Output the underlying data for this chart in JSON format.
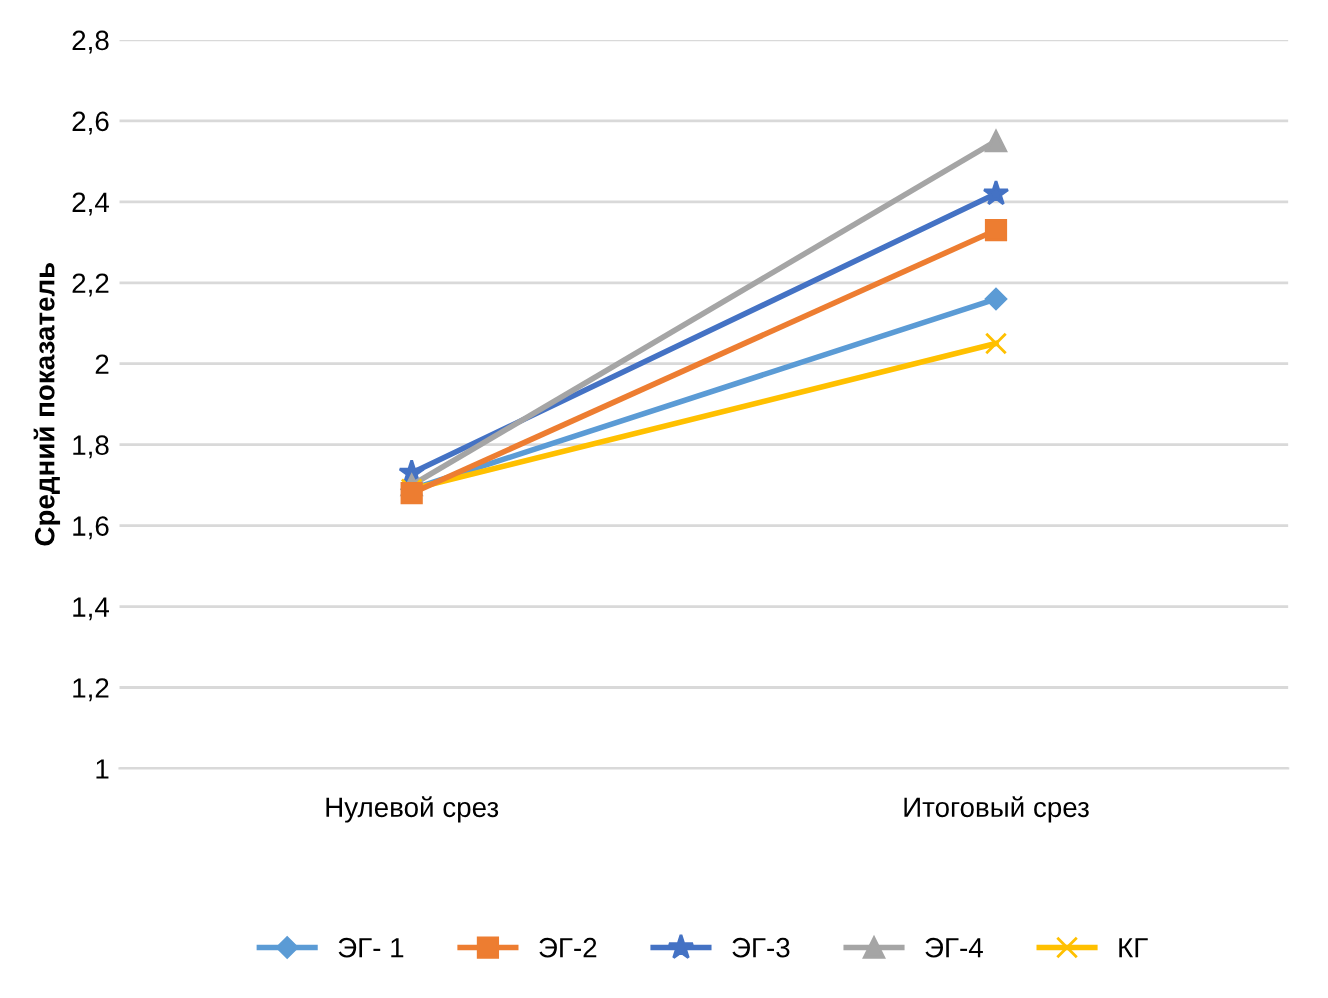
{
  "chart_data": {
    "type": "line",
    "ylabel": "Средний показатель",
    "categories": [
      "Нулевой срез",
      "Итоговый срез"
    ],
    "series": [
      {
        "name": "ЭГ- 1",
        "color": "#5b9bd5",
        "marker": "diamond",
        "values": [
          1.69,
          2.16
        ]
      },
      {
        "name": "ЭГ-2",
        "color": "#ed7d31",
        "marker": "square",
        "values": [
          1.68,
          2.33
        ]
      },
      {
        "name": "ЭГ-3",
        "color": "#4472c4",
        "marker": "star",
        "values": [
          1.73,
          2.42
        ]
      },
      {
        "name": "ЭГ-4",
        "color": "#a5a5a5",
        "marker": "triangle",
        "values": [
          1.7,
          2.55
        ]
      },
      {
        "name": "КГ",
        "color": "#ffc000",
        "marker": "cross",
        "values": [
          1.69,
          2.05
        ]
      }
    ],
    "ylim": [
      1,
      2.8
    ],
    "yticks": [
      {
        "value": 1,
        "label": "1"
      },
      {
        "value": 1.2,
        "label": "1,2"
      },
      {
        "value": 1.4,
        "label": "1,4"
      },
      {
        "value": 1.6,
        "label": "1,6"
      },
      {
        "value": 1.8,
        "label": "1,8"
      },
      {
        "value": 2,
        "label": "2"
      },
      {
        "value": 2.2,
        "label": "2,2"
      },
      {
        "value": 2.4,
        "label": "2,4"
      },
      {
        "value": 2.6,
        "label": "2,6"
      },
      {
        "value": 2.8,
        "label": "2,8"
      }
    ],
    "grid": "y",
    "legend": "bottom"
  }
}
